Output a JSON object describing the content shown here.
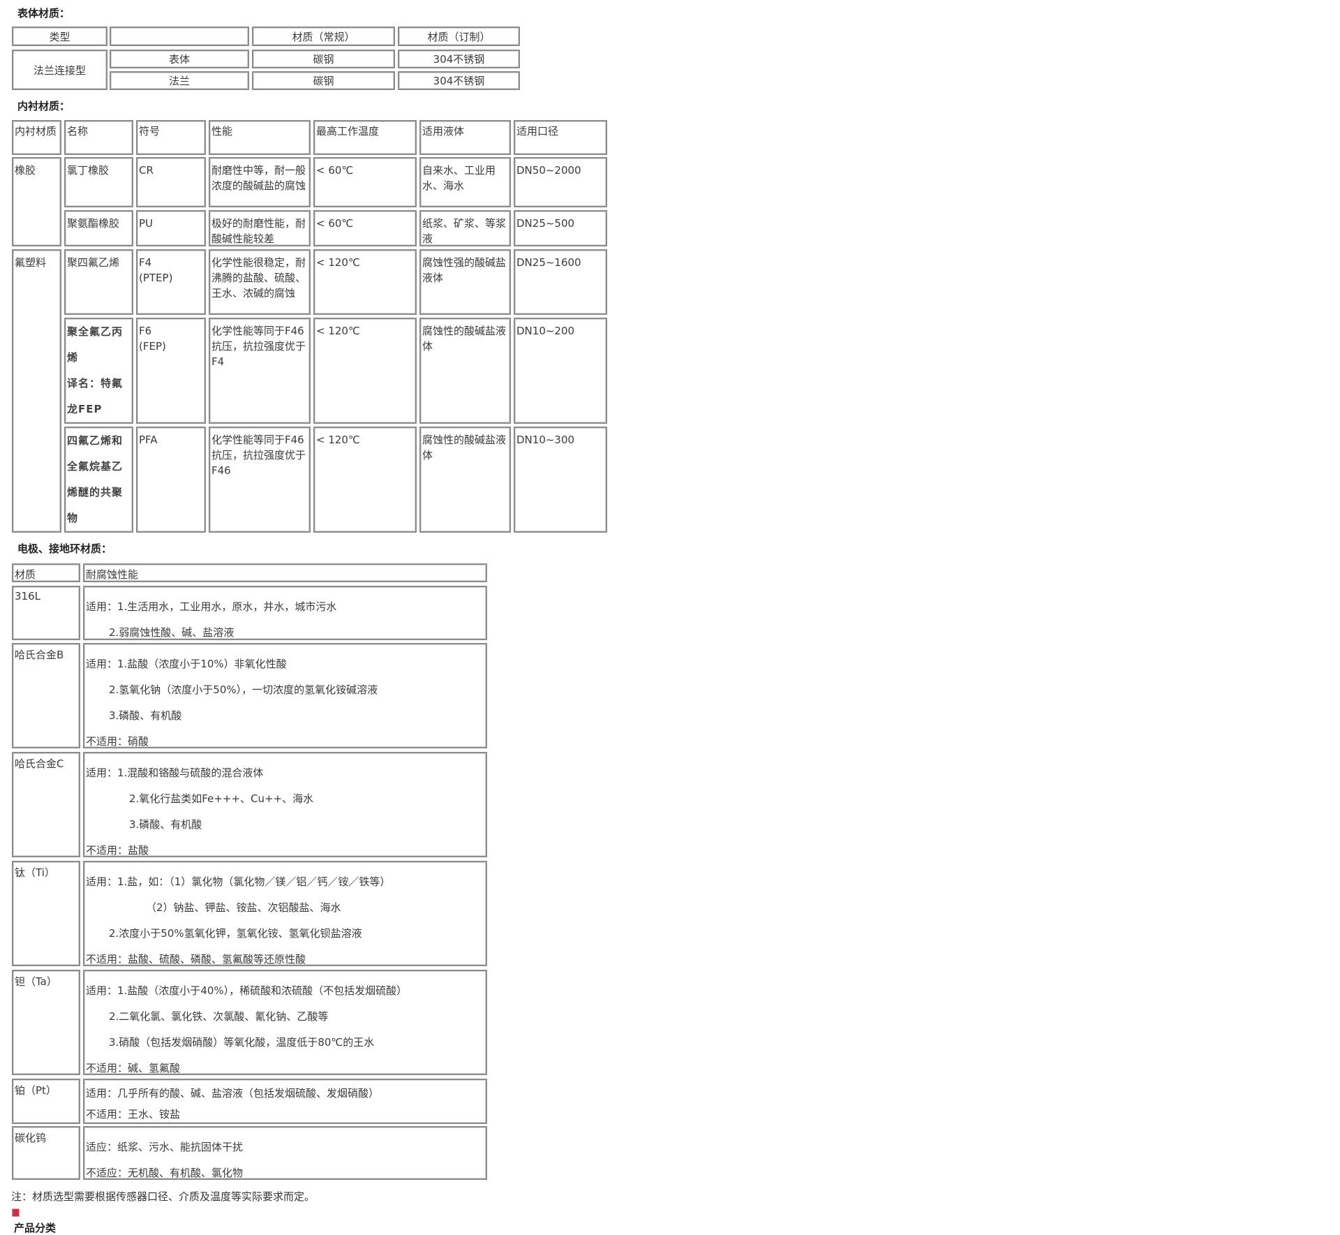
{
  "body_section": {
    "title": "表体材质：",
    "header": [
      "类型",
      "",
      "材质（常规）",
      "材质（订制）"
    ],
    "group": "法兰连接型",
    "rows": [
      [
        "表体",
        "碳钢",
        "304不锈钢"
      ],
      [
        "法兰",
        "碳钢",
        "304不锈钢"
      ]
    ]
  },
  "lining_section": {
    "title": "内衬材质：",
    "header": [
      "内衬材质",
      "名称",
      "符号",
      "性能",
      "最高工作温度",
      "适用液体",
      "适用口径"
    ],
    "groups": [
      "橡胶",
      "氟塑料"
    ],
    "rows": [
      {
        "name": [
          "氯丁橡胶"
        ],
        "symbol": [
          "CR"
        ],
        "performance": "耐磨性中等，耐一般浓度的酸碱盐的腐蚀",
        "temp": "< 60℃",
        "liquid": "自来水、工业用水、海水",
        "size": "DN50~2000"
      },
      {
        "name": [
          "聚氨酯橡胶"
        ],
        "symbol": [
          "PU"
        ],
        "performance": "极好的耐磨性能，耐酸碱性能较差",
        "temp": "< 60℃",
        "liquid": "纸浆、矿浆、等浆液",
        "size": "DN25~500"
      },
      {
        "name": [
          "聚四氟乙烯"
        ],
        "symbol": [
          "F4",
          "(PTEP)"
        ],
        "performance": "化学性能很稳定，耐沸腾的盐酸、硫酸、王水、浓碱的腐蚀",
        "temp": "< 120℃",
        "liquid": "腐蚀性强的酸碱盐液体",
        "size": "DN25~1600"
      },
      {
        "name": [
          "聚全氟乙丙烯",
          "译名：特氟龙FEP"
        ],
        "symbol": [
          "F6",
          "(FEP)"
        ],
        "performance": "化学性能等同于F46抗压，抗拉强度优于F4",
        "temp": "< 120℃",
        "liquid": "腐蚀性的酸碱盐液体",
        "size": "DN10~200"
      },
      {
        "name": [
          "四氟乙烯和全氟烷基乙烯醚的共聚物"
        ],
        "symbol": [
          "PFA"
        ],
        "performance": "化学性能等同于F46抗压，抗拉强度优于F46",
        "temp": "< 120℃",
        "liquid": "腐蚀性的酸碱盐液体",
        "size": "DN10~300"
      }
    ]
  },
  "electrode_section": {
    "title": "电极、接地环材质：",
    "header": [
      "材质",
      "耐腐蚀性能"
    ],
    "rows": [
      {
        "material": "316L",
        "lines": [
          "适用：1.生活用水，工业用水，原水，井水，城市污水",
          "2.弱腐蚀性酸、碱、盐溶液"
        ]
      },
      {
        "material": "哈氏合金B",
        "lines": [
          "适用：1.盐酸（浓度小于10%）非氧化性酸",
          "2.氢氧化钠（浓度小于50%），一切浓度的氢氧化铵碱溶液",
          "3.磷酸、有机酸",
          "不适用：硝酸"
        ]
      },
      {
        "material": "哈氏合金C",
        "lines": [
          "适用：1.混酸和铬酸与硫酸的混合液体",
          "2.氧化行盐类如Fe+++、Cu++、海水",
          "3.磷酸、有机酸",
          "不适用：盐酸"
        ]
      },
      {
        "material": "钛（Ti）",
        "lines": [
          "适用：1.盐，如：（1）氯化物（氯化物／镁／铝／钙／铵／铁等）",
          "（2）钠盐、钾盐、铵盐、次铝酸盐、海水",
          "2.浓度小于50%氢氧化钾，氢氧化铵、氢氧化钡盐溶液",
          "不适用：盐酸、硫酸、磷酸、氢氟酸等还原性酸"
        ]
      },
      {
        "material": "钽（Ta）",
        "lines": [
          "适用：1.盐酸（浓度小于40%），稀硫酸和浓硫酸（不包括发烟硫酸）",
          "2.二氧化氯、氯化铁、次氯酸、氰化钠、乙酸等",
          "3.硝酸（包括发烟硝酸）等氧化酸，温度低于80℃的王水",
          "不适用：碱、氢氟酸"
        ]
      },
      {
        "material": "铂（Pt）",
        "lines": [
          "适用：几乎所有的酸、碱、盐溶液（包括发烟硫酸、发烟硝酸）",
          "不适用：王水、铵盐"
        ]
      },
      {
        "material": "碳化钨",
        "lines": [
          "适应：纸浆、污水、能抗固体干扰",
          "不适应：无机酸、有机酸、氯化物"
        ]
      }
    ]
  },
  "note": "注：材质选型需要根据传感器口径、介质及温度等实际要求而定。",
  "broken_image_icon": "broken-image-icon",
  "category_heading": "产品分类"
}
